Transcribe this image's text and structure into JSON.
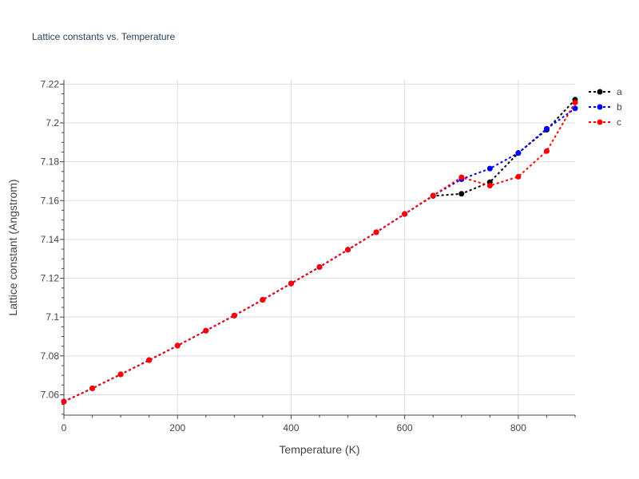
{
  "chart_data": {
    "type": "line",
    "title": "Lattice constants vs. Temperature",
    "xlabel": "Temperature (K)",
    "ylabel": "Lattice constant (Angstrom)",
    "xlim": [
      0,
      900
    ],
    "ylim": [
      7.0495,
      7.2222
    ],
    "xticks": [
      0,
      200,
      400,
      600,
      800
    ],
    "xtick_labels": [
      "0",
      "200",
      "400",
      "600",
      "800"
    ],
    "yticks": [
      7.06,
      7.08,
      7.1,
      7.12,
      7.14,
      7.16,
      7.18,
      7.2,
      7.22
    ],
    "ytick_labels": [
      "7.06",
      "7.08",
      "7.1",
      "7.12",
      "7.14",
      "7.16",
      "7.18",
      "7.2",
      "7.22"
    ],
    "grid": true,
    "legend_position": "top-right",
    "x": [
      0,
      50,
      100,
      150,
      200,
      250,
      300,
      350,
      400,
      450,
      500,
      550,
      600,
      650,
      700,
      750,
      800,
      850,
      900
    ],
    "series": [
      {
        "name": "a",
        "color": "#000000",
        "values": [
          7.0565,
          7.0633,
          7.0705,
          7.0778,
          7.0853,
          7.093,
          7.1008,
          7.1089,
          7.1173,
          7.1258,
          7.1347,
          7.1437,
          7.1531,
          7.1624,
          7.1635,
          7.1695,
          7.1845,
          7.1965,
          7.212
        ]
      },
      {
        "name": "b",
        "color": "#0000ff",
        "values": [
          7.0565,
          7.0633,
          7.0705,
          7.0778,
          7.0853,
          7.093,
          7.1008,
          7.1089,
          7.1173,
          7.1258,
          7.1347,
          7.1437,
          7.1531,
          7.1626,
          7.171,
          7.1765,
          7.1845,
          7.197,
          7.2075
        ]
      },
      {
        "name": "c",
        "color": "#ff0000",
        "values": [
          7.0565,
          7.0633,
          7.0705,
          7.0778,
          7.0853,
          7.093,
          7.1008,
          7.1089,
          7.1173,
          7.1258,
          7.1347,
          7.1437,
          7.1531,
          7.1626,
          7.172,
          7.1677,
          7.1723,
          7.1855,
          7.2105
        ]
      }
    ]
  }
}
